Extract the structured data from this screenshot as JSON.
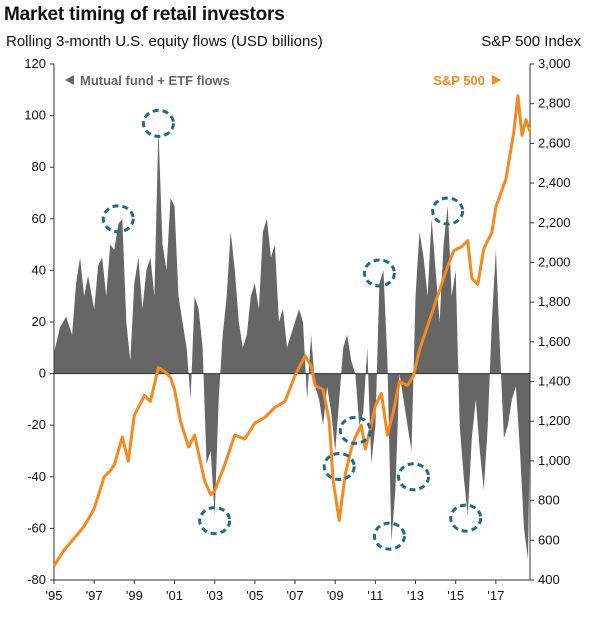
{
  "title": "Market timing of retail investors",
  "subtitle": "Rolling 3-month U.S. equity flows (USD billions)",
  "right_axis_title": "S&P 500 Index",
  "chart_data": {
    "type": "area",
    "title": "Market timing of retail investors",
    "subtitle": "Rolling 3-month U.S. equity flows (USD billions)",
    "left_axis": {
      "label": "",
      "range": [
        -80,
        120
      ],
      "ticks": [
        -80,
        -60,
        -40,
        -20,
        0,
        20,
        40,
        60,
        80,
        100,
        120
      ]
    },
    "right_axis": {
      "label": "S&P 500 Index",
      "range": [
        400,
        3000
      ],
      "ticks": [
        "400",
        "600",
        "800",
        "1,000",
        "1,200",
        "1,400",
        "1,600",
        "1,800",
        "2,000",
        "2,200",
        "2,400",
        "2,600",
        "2,800",
        "3,000"
      ]
    },
    "x_axis": {
      "range": [
        1995,
        2018.7
      ],
      "tick_years": [
        1995,
        1997,
        1999,
        2001,
        2003,
        2005,
        2007,
        2009,
        2011,
        2013,
        2015,
        2017
      ],
      "tick_labels": [
        "'95",
        "'97",
        "'99",
        "'01",
        "'03",
        "'05",
        "'07",
        "'09",
        "'11",
        "'13",
        "'15",
        "'17"
      ]
    },
    "grid": false,
    "series": [
      {
        "name": "Mutual fund + ETF flows",
        "axis": "left",
        "type": "area",
        "color": "#666666",
        "points": [
          [
            1995.0,
            8
          ],
          [
            1995.3,
            18
          ],
          [
            1995.6,
            22
          ],
          [
            1995.9,
            15
          ],
          [
            1996.1,
            35
          ],
          [
            1996.3,
            45
          ],
          [
            1996.5,
            30
          ],
          [
            1996.7,
            38
          ],
          [
            1997.0,
            25
          ],
          [
            1997.2,
            42
          ],
          [
            1997.4,
            45
          ],
          [
            1997.6,
            30
          ],
          [
            1997.8,
            50
          ],
          [
            1998.0,
            48
          ],
          [
            1998.2,
            58
          ],
          [
            1998.4,
            60
          ],
          [
            1998.6,
            20
          ],
          [
            1998.8,
            5
          ],
          [
            1999.0,
            35
          ],
          [
            1999.2,
            45
          ],
          [
            1999.4,
            25
          ],
          [
            1999.6,
            40
          ],
          [
            1999.8,
            45
          ],
          [
            2000.0,
            30
          ],
          [
            2000.2,
            95
          ],
          [
            2000.4,
            50
          ],
          [
            2000.6,
            40
          ],
          [
            2000.8,
            68
          ],
          [
            2001.0,
            65
          ],
          [
            2001.2,
            30
          ],
          [
            2001.4,
            20
          ],
          [
            2001.6,
            10
          ],
          [
            2001.8,
            -10
          ],
          [
            2002.0,
            30
          ],
          [
            2002.2,
            25
          ],
          [
            2002.4,
            10
          ],
          [
            2002.6,
            -35
          ],
          [
            2002.8,
            -30
          ],
          [
            2003.0,
            -55
          ],
          [
            2003.2,
            -10
          ],
          [
            2003.4,
            15
          ],
          [
            2003.6,
            30
          ],
          [
            2003.8,
            55
          ],
          [
            2004.0,
            40
          ],
          [
            2004.2,
            20
          ],
          [
            2004.4,
            10
          ],
          [
            2004.6,
            15
          ],
          [
            2004.8,
            30
          ],
          [
            2005.0,
            35
          ],
          [
            2005.2,
            25
          ],
          [
            2005.4,
            55
          ],
          [
            2005.6,
            60
          ],
          [
            2005.8,
            45
          ],
          [
            2006.0,
            50
          ],
          [
            2006.2,
            20
          ],
          [
            2006.4,
            25
          ],
          [
            2006.6,
            10
          ],
          [
            2006.8,
            15
          ],
          [
            2007.0,
            20
          ],
          [
            2007.2,
            25
          ],
          [
            2007.4,
            20
          ],
          [
            2007.6,
            -10
          ],
          [
            2007.8,
            15
          ],
          [
            2008.0,
            -5
          ],
          [
            2008.2,
            -10
          ],
          [
            2008.4,
            -20
          ],
          [
            2008.6,
            -5
          ],
          [
            2008.8,
            -15
          ],
          [
            2009.0,
            -30
          ],
          [
            2009.2,
            -10
          ],
          [
            2009.4,
            10
          ],
          [
            2009.6,
            15
          ],
          [
            2009.8,
            5
          ],
          [
            2010.0,
            0
          ],
          [
            2010.2,
            -20
          ],
          [
            2010.4,
            -15
          ],
          [
            2010.6,
            10
          ],
          [
            2010.8,
            -35
          ],
          [
            2011.0,
            -20
          ],
          [
            2011.2,
            35
          ],
          [
            2011.4,
            40
          ],
          [
            2011.6,
            5
          ],
          [
            2011.8,
            -65
          ],
          [
            2012.0,
            -45
          ],
          [
            2012.2,
            0
          ],
          [
            2012.4,
            -10
          ],
          [
            2012.6,
            -20
          ],
          [
            2012.8,
            -30
          ],
          [
            2013.0,
            30
          ],
          [
            2013.2,
            55
          ],
          [
            2013.4,
            45
          ],
          [
            2013.6,
            30
          ],
          [
            2013.8,
            60
          ],
          [
            2014.0,
            40
          ],
          [
            2014.2,
            20
          ],
          [
            2014.4,
            50
          ],
          [
            2014.6,
            65
          ],
          [
            2014.8,
            30
          ],
          [
            2015.0,
            40
          ],
          [
            2015.2,
            -20
          ],
          [
            2015.4,
            -40
          ],
          [
            2015.6,
            -55
          ],
          [
            2015.8,
            -25
          ],
          [
            2016.0,
            -10
          ],
          [
            2016.2,
            -30
          ],
          [
            2016.4,
            -45
          ],
          [
            2016.6,
            -20
          ],
          [
            2016.8,
            20
          ],
          [
            2017.0,
            48
          ],
          [
            2017.2,
            10
          ],
          [
            2017.4,
            -25
          ],
          [
            2017.6,
            -20
          ],
          [
            2017.8,
            -10
          ],
          [
            2018.0,
            -5
          ],
          [
            2018.2,
            -30
          ],
          [
            2018.4,
            -60
          ],
          [
            2018.6,
            -72
          ],
          [
            2018.7,
            -20
          ]
        ]
      },
      {
        "name": "S&P 500",
        "axis": "right",
        "type": "line",
        "color": "#f5881f",
        "points": [
          [
            1995.0,
            470
          ],
          [
            1995.5,
            550
          ],
          [
            1996.0,
            610
          ],
          [
            1996.5,
            670
          ],
          [
            1997.0,
            760
          ],
          [
            1997.5,
            920
          ],
          [
            1997.8,
            950
          ],
          [
            1998.0,
            980
          ],
          [
            1998.4,
            1120
          ],
          [
            1998.7,
            1000
          ],
          [
            1999.0,
            1230
          ],
          [
            1999.5,
            1330
          ],
          [
            1999.8,
            1300
          ],
          [
            2000.2,
            1470
          ],
          [
            2000.5,
            1450
          ],
          [
            2000.8,
            1420
          ],
          [
            2001.0,
            1360
          ],
          [
            2001.3,
            1200
          ],
          [
            2001.7,
            1070
          ],
          [
            2002.0,
            1130
          ],
          [
            2002.5,
            900
          ],
          [
            2002.8,
            830
          ],
          [
            2003.0,
            850
          ],
          [
            2003.5,
            980
          ],
          [
            2004.0,
            1130
          ],
          [
            2004.5,
            1110
          ],
          [
            2005.0,
            1190
          ],
          [
            2005.5,
            1220
          ],
          [
            2006.0,
            1270
          ],
          [
            2006.5,
            1300
          ],
          [
            2007.0,
            1430
          ],
          [
            2007.5,
            1530
          ],
          [
            2007.8,
            1480
          ],
          [
            2008.0,
            1380
          ],
          [
            2008.4,
            1360
          ],
          [
            2008.7,
            1200
          ],
          [
            2008.9,
            900
          ],
          [
            2009.2,
            700
          ],
          [
            2009.5,
            930
          ],
          [
            2009.8,
            1060
          ],
          [
            2010.0,
            1120
          ],
          [
            2010.3,
            1180
          ],
          [
            2010.5,
            1060
          ],
          [
            2010.8,
            1180
          ],
          [
            2011.0,
            1280
          ],
          [
            2011.3,
            1340
          ],
          [
            2011.6,
            1130
          ],
          [
            2011.9,
            1250
          ],
          [
            2012.2,
            1400
          ],
          [
            2012.6,
            1380
          ],
          [
            2012.9,
            1430
          ],
          [
            2013.2,
            1560
          ],
          [
            2013.6,
            1680
          ],
          [
            2014.0,
            1800
          ],
          [
            2014.5,
            1950
          ],
          [
            2014.9,
            2060
          ],
          [
            2015.3,
            2080
          ],
          [
            2015.6,
            2110
          ],
          [
            2015.8,
            1920
          ],
          [
            2016.1,
            1890
          ],
          [
            2016.4,
            2070
          ],
          [
            2016.8,
            2150
          ],
          [
            2017.0,
            2280
          ],
          [
            2017.5,
            2420
          ],
          [
            2017.9,
            2660
          ],
          [
            2018.1,
            2840
          ],
          [
            2018.3,
            2640
          ],
          [
            2018.5,
            2720
          ],
          [
            2018.7,
            2660
          ]
        ]
      }
    ],
    "legend": [
      {
        "label": "Mutual fund + ETF flows",
        "position": "top-left",
        "color": "#666666"
      },
      {
        "label": "S&P 500",
        "position": "top-right",
        "color": "#f5881f"
      }
    ],
    "highlights": [
      {
        "x": 1998.2,
        "y": 60,
        "axis": "left"
      },
      {
        "x": 2000.2,
        "y": 97,
        "axis": "left"
      },
      {
        "x": 2003.0,
        "y": -57,
        "axis": "left"
      },
      {
        "x": 2009.2,
        "y": -36,
        "axis": "left"
      },
      {
        "x": 2010.0,
        "y": -22,
        "axis": "left"
      },
      {
        "x": 2011.2,
        "y": 39,
        "axis": "left"
      },
      {
        "x": 2011.7,
        "y": -63,
        "axis": "left"
      },
      {
        "x": 2012.9,
        "y": -40,
        "axis": "left"
      },
      {
        "x": 2014.6,
        "y": 63,
        "axis": "left"
      },
      {
        "x": 2015.5,
        "y": -56,
        "axis": "left"
      }
    ],
    "highlight_color": "#1f6a8c"
  }
}
